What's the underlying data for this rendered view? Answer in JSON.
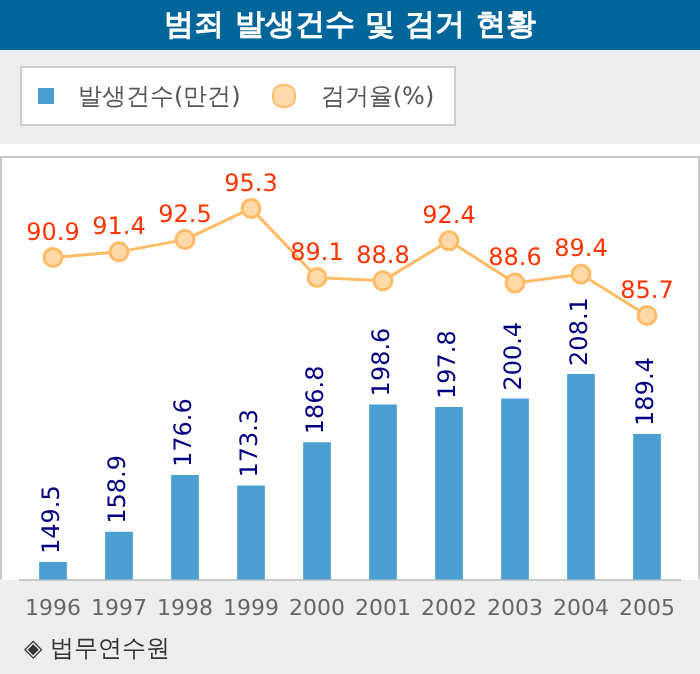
{
  "chart_data": {
    "type": "bar",
    "title": "범죄 발생건수 및 검거 현황",
    "categories": [
      "1996",
      "1997",
      "1998",
      "1999",
      "2000",
      "2001",
      "2002",
      "2003",
      "2004",
      "2005"
    ],
    "series": [
      {
        "name": "발생건수(만건)",
        "color": "#4a9fd0",
        "values": [
          149.5,
          158.9,
          176.6,
          173.3,
          186.8,
          198.6,
          197.8,
          200.4,
          208.1,
          189.4
        ]
      },
      {
        "name": "검거율(%)",
        "type": "line",
        "axis": "y2",
        "color": "#ffbb66",
        "values": [
          90.9,
          91.4,
          92.5,
          95.3,
          89.1,
          88.8,
          92.4,
          88.6,
          89.4,
          85.7
        ]
      }
    ],
    "ylim": [
      144,
      276
    ],
    "y2lim": [
      62,
      100
    ],
    "tick_labels": "x",
    "data_labels": true,
    "legend": "top left",
    "marker": "circle",
    "grid": false,
    "annotations": [
      "◈ 법무연수원"
    ]
  }
}
